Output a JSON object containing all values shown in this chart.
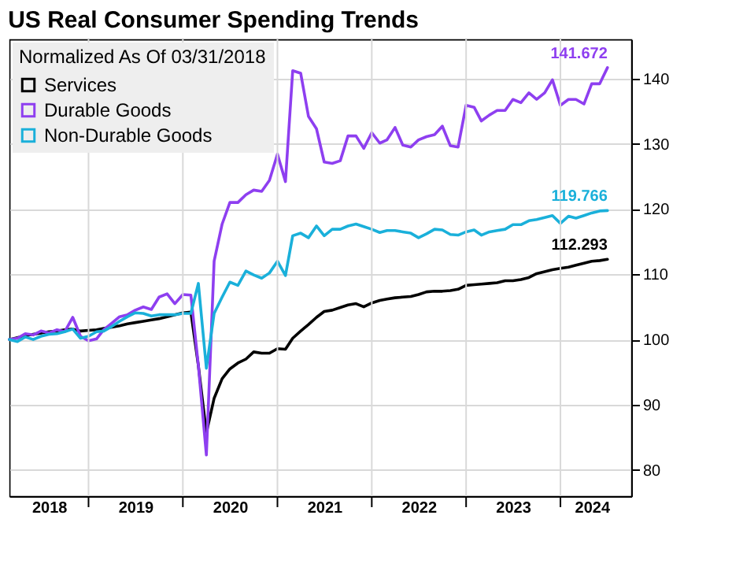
{
  "chart_data": {
    "type": "line",
    "title": "US Real Consumer Spending Trends",
    "legend_title": "Normalized As Of 03/31/2018",
    "x": [
      "2018-03",
      "2018-04",
      "2018-05",
      "2018-06",
      "2018-07",
      "2018-08",
      "2018-09",
      "2018-10",
      "2018-11",
      "2018-12",
      "2019-01",
      "2019-02",
      "2019-03",
      "2019-04",
      "2019-05",
      "2019-06",
      "2019-07",
      "2019-08",
      "2019-09",
      "2019-10",
      "2019-11",
      "2019-12",
      "2020-01",
      "2020-02",
      "2020-03",
      "2020-04",
      "2020-05",
      "2020-06",
      "2020-07",
      "2020-08",
      "2020-09",
      "2020-10",
      "2020-11",
      "2020-12",
      "2021-01",
      "2021-02",
      "2021-03",
      "2021-04",
      "2021-05",
      "2021-06",
      "2021-07",
      "2021-08",
      "2021-09",
      "2021-10",
      "2021-11",
      "2021-12",
      "2022-01",
      "2022-02",
      "2022-03",
      "2022-04",
      "2022-05",
      "2022-06",
      "2022-07",
      "2022-08",
      "2022-09",
      "2022-10",
      "2022-11",
      "2022-12",
      "2023-01",
      "2023-02",
      "2023-03",
      "2023-04",
      "2023-05",
      "2023-06",
      "2023-07",
      "2023-08",
      "2023-09",
      "2023-10",
      "2023-11",
      "2023-12",
      "2024-01",
      "2024-02",
      "2024-03",
      "2024-04",
      "2024-05",
      "2024-06",
      "2024-07"
    ],
    "series": [
      {
        "name": "Services",
        "color": "#000000",
        "values": [
          100,
          100.3,
          100.6,
          100.8,
          101,
          101.2,
          101.3,
          101.5,
          101.6,
          101.3,
          101.4,
          101.5,
          101.7,
          101.9,
          102.1,
          102.4,
          102.6,
          102.8,
          103,
          103.2,
          103.5,
          103.8,
          104.1,
          104.2,
          96,
          85.7,
          91,
          94,
          95.5,
          96.4,
          97,
          98.1,
          97.9,
          97.9,
          98.6,
          98.5,
          100.2,
          101.3,
          102.3,
          103.4,
          104.3,
          104.5,
          104.9,
          105.3,
          105.5,
          105,
          105.6,
          106,
          106.2,
          106.4,
          106.5,
          106.6,
          106.9,
          107.3,
          107.4,
          107.4,
          107.5,
          107.7,
          108.3,
          108.4,
          108.5,
          108.6,
          108.7,
          109,
          109,
          109.2,
          109.5,
          110.1,
          110.4,
          110.7,
          110.9,
          111.1,
          111.4,
          111.7,
          112,
          112.1,
          112.293
        ],
        "value_labels": [
          null,
          null,
          null,
          null,
          null,
          null,
          null,
          null,
          null,
          null,
          null,
          null,
          null,
          null,
          null,
          null,
          null,
          null,
          null,
          null,
          null,
          null,
          null,
          null,
          null,
          null,
          null,
          null,
          null,
          null,
          null,
          null,
          null,
          null,
          null,
          null,
          null,
          null,
          null,
          null,
          null,
          null,
          null,
          null,
          null,
          null,
          null,
          null,
          null,
          null,
          null,
          null,
          null,
          null,
          null,
          null,
          null,
          null,
          null,
          null,
          null,
          null,
          null,
          null,
          null,
          null,
          null,
          null,
          null,
          null,
          null,
          null,
          null,
          null,
          null,
          null,
          "112.293"
        ]
      },
      {
        "name": "Durable Goods",
        "color": "#8e3ff0",
        "values": [
          100,
          100.2,
          100.9,
          100.7,
          101.3,
          101,
          101.5,
          101.2,
          103.4,
          100.5,
          99.8,
          100.1,
          101.5,
          102.5,
          103.5,
          103.8,
          104.5,
          105,
          104.6,
          106.5,
          107,
          105.5,
          106.9,
          106.8,
          96,
          82.3,
          112,
          117.7,
          121,
          121,
          122.2,
          122.9,
          122.7,
          124.4,
          128.4,
          124.2,
          141.2,
          140.8,
          134.2,
          132.3,
          127.2,
          127,
          127.4,
          131.2,
          131.2,
          129.3,
          131.7,
          130.1,
          130.6,
          132.5,
          129.8,
          129.5,
          130.6,
          131.1,
          131.4,
          132.7,
          129.7,
          129.5,
          135.9,
          135.6,
          133.5,
          134.4,
          135.1,
          135.1,
          136.8,
          136.3,
          137.8,
          136.8,
          137.8,
          139.8,
          135.9,
          136.8,
          136.8,
          136.1,
          139.2,
          139.2,
          141.672
        ],
        "value_labels": [
          null,
          null,
          null,
          null,
          null,
          null,
          null,
          null,
          null,
          null,
          null,
          null,
          null,
          null,
          null,
          null,
          null,
          null,
          null,
          null,
          null,
          null,
          null,
          null,
          null,
          null,
          null,
          null,
          null,
          null,
          null,
          null,
          null,
          null,
          null,
          null,
          null,
          null,
          null,
          null,
          null,
          null,
          null,
          null,
          null,
          null,
          null,
          null,
          null,
          null,
          null,
          null,
          null,
          null,
          null,
          null,
          null,
          null,
          null,
          null,
          null,
          null,
          null,
          null,
          null,
          null,
          null,
          null,
          null,
          null,
          null,
          null,
          null,
          null,
          null,
          null,
          "141.672"
        ]
      },
      {
        "name": "Non-Durable Goods",
        "color": "#1ab0da",
        "values": [
          100,
          99.7,
          100.4,
          100,
          100.5,
          100.8,
          100.9,
          101.2,
          101.6,
          100.2,
          100.5,
          101.2,
          101.3,
          102,
          102.8,
          103.5,
          104.1,
          104,
          103.6,
          103.8,
          103.8,
          103.8,
          104,
          104,
          108.6,
          95.6,
          104,
          106.5,
          108.8,
          108.3,
          110.5,
          109.9,
          109.4,
          110.2,
          112,
          109.8,
          115.9,
          116.3,
          115.6,
          117.4,
          115.9,
          116.9,
          116.9,
          117.4,
          117.7,
          117.3,
          116.9,
          116.4,
          116.7,
          116.7,
          116.5,
          116.3,
          115.6,
          116.2,
          116.9,
          116.8,
          116.1,
          116,
          116.5,
          116.8,
          116,
          116.5,
          116.7,
          116.9,
          117.6,
          117.6,
          118.2,
          118.4,
          118.7,
          119,
          117.8,
          118.9,
          118.6,
          119,
          119.4,
          119.7,
          119.766
        ],
        "value_labels": [
          null,
          null,
          null,
          null,
          null,
          null,
          null,
          null,
          null,
          null,
          null,
          null,
          null,
          null,
          null,
          null,
          null,
          null,
          null,
          null,
          null,
          null,
          null,
          null,
          null,
          null,
          null,
          null,
          null,
          null,
          null,
          null,
          null,
          null,
          null,
          null,
          null,
          null,
          null,
          null,
          null,
          null,
          null,
          null,
          null,
          null,
          null,
          null,
          null,
          null,
          null,
          null,
          null,
          null,
          null,
          null,
          null,
          null,
          null,
          null,
          null,
          null,
          null,
          null,
          null,
          null,
          null,
          null,
          null,
          null,
          null,
          null,
          null,
          null,
          null,
          null,
          "119.766"
        ]
      }
    ],
    "xlim": [
      "2018-03",
      "2024-10"
    ],
    "xticks": [
      {
        "value": "2018-08",
        "label": "2018"
      },
      {
        "value": "2019",
        "label": null
      },
      {
        "value": "2019-07",
        "label": "2019"
      },
      {
        "value": "2020",
        "label": null
      },
      {
        "value": "2020-07",
        "label": "2020"
      },
      {
        "value": "2021",
        "label": null
      },
      {
        "value": "2021-07",
        "label": "2021"
      },
      {
        "value": "2022",
        "label": null
      },
      {
        "value": "2022-07",
        "label": "2022"
      },
      {
        "value": "2023",
        "label": null
      },
      {
        "value": "2023-07",
        "label": "2023"
      },
      {
        "value": "2024",
        "label": null
      },
      {
        "value": "2024-05",
        "label": "2024"
      }
    ],
    "ylim": [
      76,
      146
    ],
    "yticks": [
      80,
      90,
      100,
      110,
      120,
      130,
      140
    ],
    "grid": true,
    "legend": "top left",
    "marker": "none",
    "line_style": "solid"
  }
}
